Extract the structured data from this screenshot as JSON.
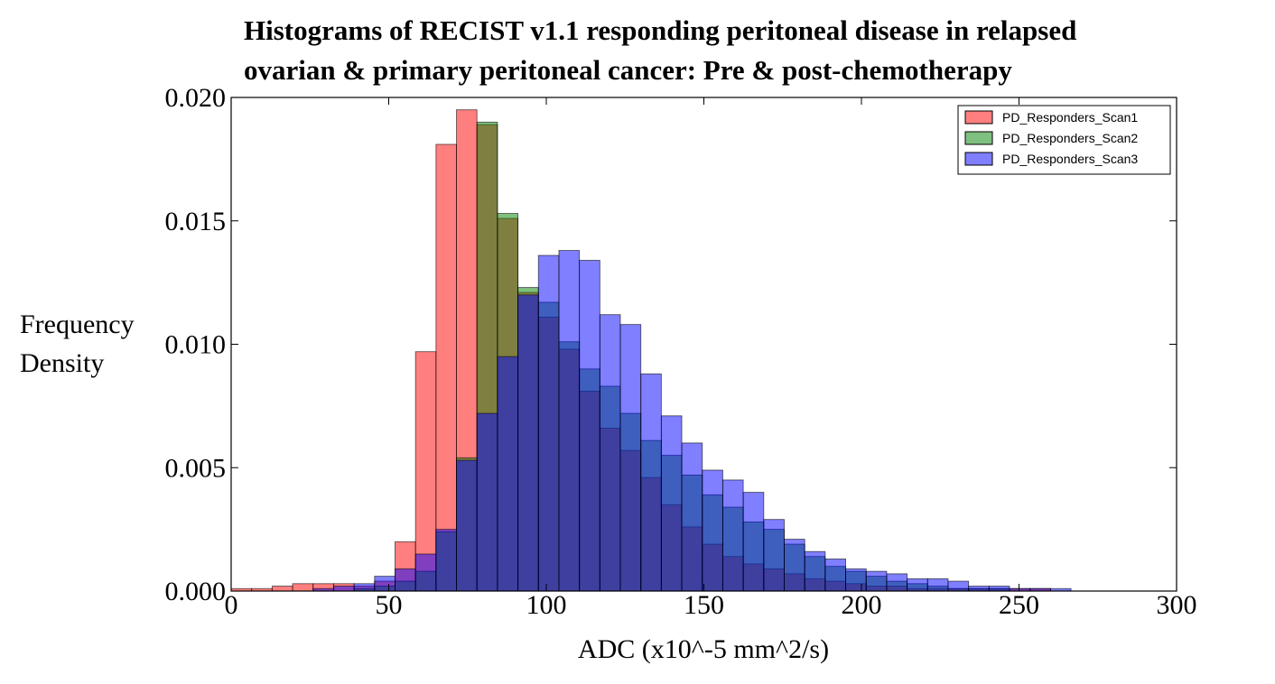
{
  "chart_data": {
    "type": "histogram",
    "title_lines": [
      "Histograms of RECIST v1.1 responding peritoneal disease in relapsed",
      "ovarian & primary peritoneal cancer: Pre & post-chemotherapy"
    ],
    "xlabel": "ADC (x10^-5 mm^2/s)",
    "ylabel_lines": [
      "Frequency",
      "Density"
    ],
    "xlim": [
      0,
      300
    ],
    "ylim": [
      0,
      0.02
    ],
    "xticks": [
      0,
      50,
      100,
      150,
      200,
      250,
      300
    ],
    "xtick_labels": [
      "0",
      "50",
      "100",
      "150",
      "200",
      "250",
      "300"
    ],
    "yticks": [
      0,
      0.005,
      0.01,
      0.015,
      0.02
    ],
    "ytick_labels": [
      "0.000",
      "0.005",
      "0.010",
      "0.015",
      "0.020"
    ],
    "grid": false,
    "legend_position": "top-right",
    "bin_width": 6.5,
    "series": [
      {
        "name": "PD_Responders_Scan1",
        "color": "#ff0000",
        "edge_color": "#000000",
        "alpha": 0.5,
        "bin_starts": [
          0,
          6.5,
          13,
          19.5,
          26,
          32.5,
          39,
          45.5,
          52,
          58.5,
          65,
          71.5,
          78,
          84.5,
          91,
          97.5,
          104,
          110.5,
          117,
          123.5,
          130,
          136.5,
          143,
          149.5,
          156,
          162.5,
          169,
          175.5,
          182,
          188.5,
          195,
          201.5,
          208,
          214.5,
          221,
          227.5,
          234,
          240.5,
          247,
          253.5
        ],
        "values": [
          0.0001,
          0.0001,
          0.0002,
          0.0003,
          0.0003,
          0.0003,
          0.0002,
          0.0004,
          0.002,
          0.0097,
          0.0181,
          0.0195,
          0.0189,
          0.0151,
          0.0121,
          0.0111,
          0.0098,
          0.0081,
          0.0066,
          0.0057,
          0.0046,
          0.0035,
          0.0026,
          0.0019,
          0.0014,
          0.0011,
          0.0009,
          0.0007,
          0.0005,
          0.0004,
          0.0003,
          0.0002,
          0.0002,
          0.0001,
          0.0001,
          0.0001,
          0.0001,
          0.0001,
          0.0001,
          0.0001
        ]
      },
      {
        "name": "PD_Responders_Scan2",
        "color": "#008000",
        "edge_color": "#000000",
        "alpha": 0.5,
        "bin_starts": [
          0,
          6.5,
          13,
          19.5,
          26,
          32.5,
          39,
          45.5,
          52,
          58.5,
          65,
          71.5,
          78,
          84.5,
          91,
          97.5,
          104,
          110.5,
          117,
          123.5,
          130,
          136.5,
          143,
          149.5,
          156,
          162.5,
          169,
          175.5,
          182,
          188.5,
          195,
          201.5,
          208,
          214.5,
          221,
          227.5,
          234,
          240.5,
          247,
          253.5
        ],
        "values": [
          0,
          0,
          0,
          0,
          0,
          0,
          0.0001,
          0.0002,
          0.0004,
          0.0008,
          0.0024,
          0.0054,
          0.019,
          0.0153,
          0.0123,
          0.0117,
          0.0101,
          0.009,
          0.0083,
          0.0072,
          0.0061,
          0.0055,
          0.0047,
          0.0039,
          0.0034,
          0.0028,
          0.0025,
          0.0019,
          0.0014,
          0.001,
          0.0008,
          0.0006,
          0.0004,
          0.0003,
          0.0002,
          0.0001,
          0.0001,
          0.0001,
          0,
          0
        ]
      },
      {
        "name": "PD_Responders_Scan3",
        "color": "#0000ff",
        "edge_color": "#000000",
        "alpha": 0.5,
        "bin_starts": [
          26,
          32.5,
          39,
          45.5,
          52,
          58.5,
          65,
          71.5,
          78,
          84.5,
          91,
          97.5,
          104,
          110.5,
          117,
          123.5,
          130,
          136.5,
          143,
          149.5,
          156,
          162.5,
          169,
          175.5,
          182,
          188.5,
          195,
          201.5,
          208,
          214.5,
          221,
          227.5,
          234,
          240.5,
          247,
          253.5,
          260
        ],
        "values": [
          0.0001,
          0.0002,
          0.0003,
          0.0006,
          0.0009,
          0.0015,
          0.0025,
          0.0053,
          0.0072,
          0.0095,
          0.012,
          0.0136,
          0.0138,
          0.0134,
          0.0112,
          0.0108,
          0.0088,
          0.0071,
          0.006,
          0.0049,
          0.0045,
          0.004,
          0.0029,
          0.0021,
          0.0016,
          0.0013,
          0.0009,
          0.0008,
          0.0007,
          0.0005,
          0.0005,
          0.0004,
          0.0002,
          0.0002,
          0.0001,
          0.0001,
          0.0001
        ]
      }
    ]
  }
}
